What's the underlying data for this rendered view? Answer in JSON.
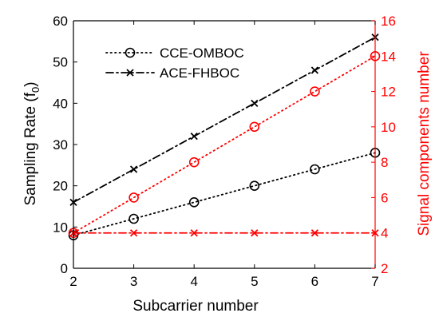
{
  "chart_data": {
    "type": "line",
    "xlabel": "Subcarrier number",
    "ylabel_left": "Sampling Rate (f0)",
    "ylabel_left_base": "Sampling Rate (f",
    "ylabel_left_sub": "0",
    "ylabel_left_close": ")",
    "ylabel_right": "Signal components number",
    "xlim": [
      2,
      7
    ],
    "ylim_left": [
      0,
      60
    ],
    "ylim_right": [
      2,
      16
    ],
    "x_ticks": [
      "2",
      "3",
      "4",
      "5",
      "6",
      "7"
    ],
    "y_left_ticks": [
      "0",
      "10",
      "20",
      "30",
      "40",
      "50",
      "60"
    ],
    "y_right_ticks": [
      "2",
      "4",
      "6",
      "8",
      "10",
      "12",
      "14",
      "16"
    ],
    "grid": false,
    "legend_position": "top-left",
    "colors": {
      "left_axis": "#000000",
      "right_axis": "#ff0000"
    },
    "series": [
      {
        "name": "CCE-OMBOC",
        "axis": "left",
        "color": "#000000",
        "style": "dotted",
        "marker": "circle",
        "x": [
          2,
          3,
          4,
          5,
          6,
          7
        ],
        "values": [
          8,
          12,
          16,
          20,
          24,
          28
        ]
      },
      {
        "name": "ACE-FHBOC",
        "axis": "left",
        "color": "#000000",
        "style": "dashdot",
        "marker": "x",
        "x": [
          2,
          3,
          4,
          5,
          6,
          7
        ],
        "values": [
          16,
          24,
          32,
          40,
          48,
          56
        ]
      },
      {
        "axis": "right",
        "color": "#ff0000",
        "style": "dotted",
        "marker": "circle",
        "x": [
          2,
          3,
          4,
          5,
          6,
          7
        ],
        "values": [
          4,
          6,
          8,
          10,
          12,
          14
        ]
      },
      {
        "axis": "right",
        "color": "#ff0000",
        "style": "dashdot",
        "marker": "x",
        "x": [
          2,
          3,
          4,
          5,
          6,
          7
        ],
        "values": [
          4,
          4,
          4,
          4,
          4,
          4
        ]
      }
    ]
  }
}
